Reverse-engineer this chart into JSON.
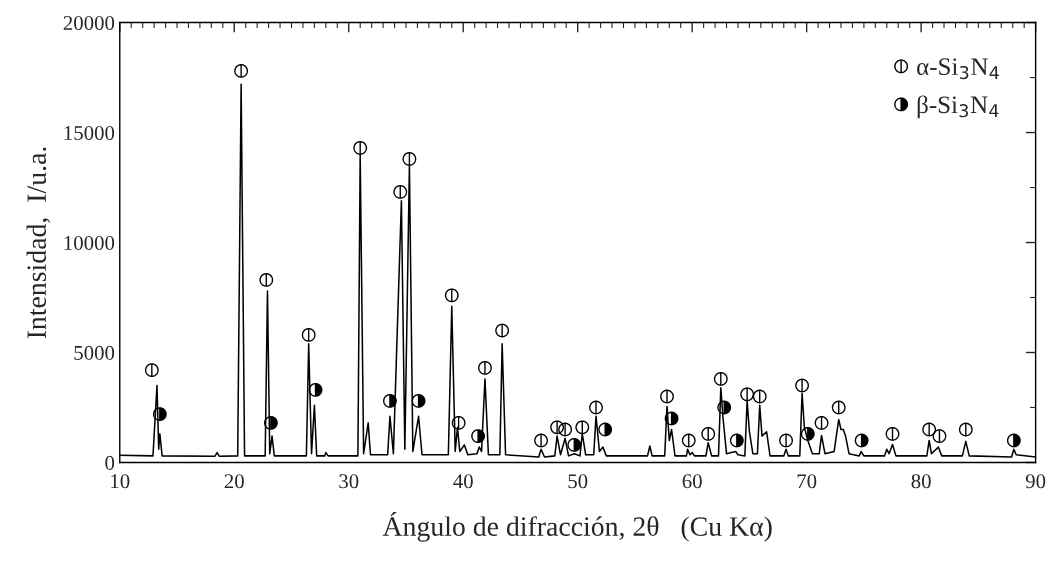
{
  "chart_data": {
    "type": "line",
    "xlabel": "Ángulo de difracción, 2θ   (Cu Kα)",
    "ylabel": "Intensidad,  I/u.a.",
    "xlim": [
      10,
      90
    ],
    "ylim": [
      0,
      20000
    ],
    "xticks": [
      10,
      {
        "value": 11,
        "label": null
      },
      {
        "value": 12,
        "label": null
      },
      {
        "value": 13,
        "label": null
      },
      {
        "value": 14,
        "label": null
      },
      {
        "value": 15,
        "label": null
      },
      {
        "value": 16,
        "label": null
      },
      {
        "value": 17,
        "label": null
      },
      {
        "value": 18,
        "label": null
      },
      {
        "value": 19,
        "label": null
      },
      20,
      {
        "value": 21,
        "label": null
      },
      {
        "value": 22,
        "label": null
      },
      {
        "value": 23,
        "label": null
      },
      {
        "value": 24,
        "label": null
      },
      {
        "value": 25,
        "label": null
      },
      {
        "value": 26,
        "label": null
      },
      {
        "value": 27,
        "label": null
      },
      {
        "value": 28,
        "label": null
      },
      {
        "value": 29,
        "label": null
      },
      30,
      {
        "value": 31,
        "label": null
      },
      {
        "value": 32,
        "label": null
      },
      {
        "value": 33,
        "label": null
      },
      {
        "value": 34,
        "label": null
      },
      {
        "value": 35,
        "label": null
      },
      {
        "value": 36,
        "label": null
      },
      {
        "value": 37,
        "label": null
      },
      {
        "value": 38,
        "label": null
      },
      {
        "value": 39,
        "label": null
      },
      40,
      {
        "value": 41,
        "label": null
      },
      {
        "value": 42,
        "label": null
      },
      {
        "value": 43,
        "label": null
      },
      {
        "value": 44,
        "label": null
      },
      {
        "value": 45,
        "label": null
      },
      {
        "value": 46,
        "label": null
      },
      {
        "value": 47,
        "label": null
      },
      {
        "value": 48,
        "label": null
      },
      {
        "value": 49,
        "label": null
      },
      50,
      {
        "value": 51,
        "label": null
      },
      {
        "value": 52,
        "label": null
      },
      {
        "value": 53,
        "label": null
      },
      {
        "value": 54,
        "label": null
      },
      {
        "value": 55,
        "label": null
      },
      {
        "value": 56,
        "label": null
      },
      {
        "value": 57,
        "label": null
      },
      {
        "value": 58,
        "label": null
      },
      {
        "value": 59,
        "label": null
      },
      60,
      {
        "value": 61,
        "label": null
      },
      {
        "value": 62,
        "label": null
      },
      {
        "value": 63,
        "label": null
      },
      {
        "value": 64,
        "label": null
      },
      {
        "value": 65,
        "label": null
      },
      {
        "value": 66,
        "label": null
      },
      {
        "value": 67,
        "label": null
      },
      {
        "value": 68,
        "label": null
      },
      {
        "value": 69,
        "label": null
      },
      70,
      {
        "value": 71,
        "label": null
      },
      {
        "value": 72,
        "label": null
      },
      {
        "value": 73,
        "label": null
      },
      {
        "value": 74,
        "label": null
      },
      {
        "value": 75,
        "label": null
      },
      {
        "value": 76,
        "label": null
      },
      {
        "value": 77,
        "label": null
      },
      {
        "value": 78,
        "label": null
      },
      {
        "value": 79,
        "label": null
      },
      80,
      {
        "value": 81,
        "label": null
      },
      {
        "value": 82,
        "label": null
      },
      {
        "value": 83,
        "label": null
      },
      {
        "value": 84,
        "label": null
      },
      {
        "value": 85,
        "label": null
      },
      {
        "value": 86,
        "label": null
      },
      {
        "value": 87,
        "label": null
      },
      {
        "value": 88,
        "label": null
      },
      {
        "value": 89,
        "label": null
      },
      90
    ],
    "yticks": [
      0,
      {
        "value": 2500,
        "label": null
      },
      5000,
      {
        "value": 7500,
        "label": null
      },
      10000,
      {
        "value": 12500,
        "label": null
      },
      15000,
      {
        "value": 17500,
        "label": null
      },
      20000
    ],
    "legend": "top right",
    "marker": "none",
    "line_style": "solid",
    "series": [
      {
        "color": "#000000",
        "x": [
          10,
          12.9,
          13.25,
          13.4,
          13.5,
          13.7,
          18.3,
          18.5,
          18.7,
          20.3,
          20.6,
          20.9,
          22.7,
          22.9,
          23.1,
          23.3,
          23.5,
          26.3,
          26.5,
          26.75,
          27.0,
          27.2,
          27.9,
          28.0,
          28.2,
          30.8,
          31.0,
          31.3,
          31.7,
          31.9,
          33.4,
          33.6,
          33.9,
          34.6,
          34.9,
          35.3,
          35.6,
          36.1,
          36.4,
          38.7,
          39.0,
          39.3,
          39.5,
          39.7,
          40.1,
          40.4,
          41.2,
          41.4,
          41.6,
          41.9,
          42.2,
          43.2,
          43.4,
          43.7,
          46.6,
          46.8,
          47.1,
          48.0,
          48.2,
          48.5,
          48.9,
          49.2,
          49.7,
          50.2,
          50.4,
          50.7,
          51.4,
          51.6,
          51.9,
          52.2,
          52.5,
          56.1,
          56.3,
          56.5,
          57.6,
          57.8,
          58.0,
          58.2,
          58.5,
          59.5,
          59.6,
          59.8,
          60.0,
          60.2,
          61.2,
          61.4,
          61.7,
          62.3,
          62.5,
          62.7,
          63.0,
          63.8,
          64.0,
          64.6,
          64.8,
          65.0,
          65.3,
          65.7,
          65.9,
          66.1,
          66.5,
          66.8,
          68.0,
          68.2,
          68.4,
          69.4,
          69.6,
          69.8,
          70.1,
          70.5,
          71.1,
          71.3,
          71.6,
          72.4,
          72.8,
          73.0,
          73.2,
          73.4,
          73.7,
          74.6,
          74.75,
          75.0,
          76.8,
          77.0,
          77.2,
          77.5,
          77.8,
          80.5,
          80.7,
          80.9,
          81.5,
          81.8,
          83.6,
          83.9,
          84.2,
          87.9,
          88.1,
          88.3,
          90
        ],
        "values": [
          330,
          300,
          3500,
          600,
          1300,
          300,
          280,
          450,
          280,
          300,
          17200,
          300,
          300,
          7800,
          400,
          1200,
          300,
          300,
          5400,
          400,
          2600,
          300,
          300,
          450,
          300,
          300,
          14000,
          400,
          1800,
          350,
          350,
          2100,
          400,
          11900,
          600,
          13500,
          500,
          2100,
          350,
          350,
          7100,
          500,
          1600,
          500,
          800,
          350,
          400,
          700,
          500,
          3800,
          350,
          350,
          5400,
          350,
          250,
          600,
          250,
          300,
          1200,
          350,
          1100,
          300,
          400,
          300,
          1300,
          350,
          350,
          2100,
          500,
          700,
          300,
          300,
          750,
          300,
          300,
          2550,
          1000,
          1500,
          300,
          300,
          600,
          350,
          450,
          300,
          300,
          900,
          300,
          300,
          3400,
          2000,
          400,
          500,
          350,
          300,
          2800,
          1400,
          400,
          400,
          2600,
          1200,
          1400,
          300,
          300,
          600,
          300,
          300,
          3150,
          1600,
          1000,
          400,
          400,
          1230,
          400,
          500,
          1950,
          1500,
          1500,
          1200,
          400,
          300,
          500,
          300,
          300,
          600,
          400,
          820,
          300,
          300,
          1000,
          400,
          700,
          300,
          300,
          960,
          300,
          250,
          600,
          350,
          250
        ]
      },
      {
        "type": "scatter",
        "name": "α-Si$_{3}$N$_{4}$",
        "color": "#ffffff",
        "marker": "circle",
        "x": [
          12.8,
          20.6,
          22.8,
          26.5,
          31.0,
          34.5,
          35.3,
          39.0,
          39.6,
          41.9,
          43.4,
          46.8,
          48.2,
          48.9,
          50.4,
          51.6,
          57.8,
          59.7,
          61.4,
          62.5,
          64.8,
          65.9,
          68.2,
          69.6,
          71.3,
          72.8,
          77.5,
          80.7,
          81.6,
          83.9
        ],
        "values": [
          4200,
          17800,
          8300,
          5800,
          14300,
          12300,
          13800,
          7600,
          1800,
          4300,
          6000,
          1000,
          1600,
          1500,
          1600,
          2500,
          3000,
          1000,
          1300,
          3800,
          3100,
          3000,
          1000,
          3500,
          1800,
          2500,
          1300,
          1500,
          1200,
          1500
        ]
      },
      {
        "type": "scatter",
        "name": "β-Si$_{3}$N$_{4}$",
        "color": "#000000",
        "marker": "circle",
        "x": [
          13.5,
          23.2,
          27.1,
          33.6,
          36.1,
          41.3,
          49.7,
          52.4,
          58.2,
          62.8,
          63.9,
          70.1,
          74.8,
          88.1
        ],
        "values": [
          2200,
          1800,
          3300,
          2800,
          2800,
          1200,
          800,
          1500,
          2000,
          2500,
          1000,
          1300,
          1000,
          1000
        ]
      }
    ]
  }
}
